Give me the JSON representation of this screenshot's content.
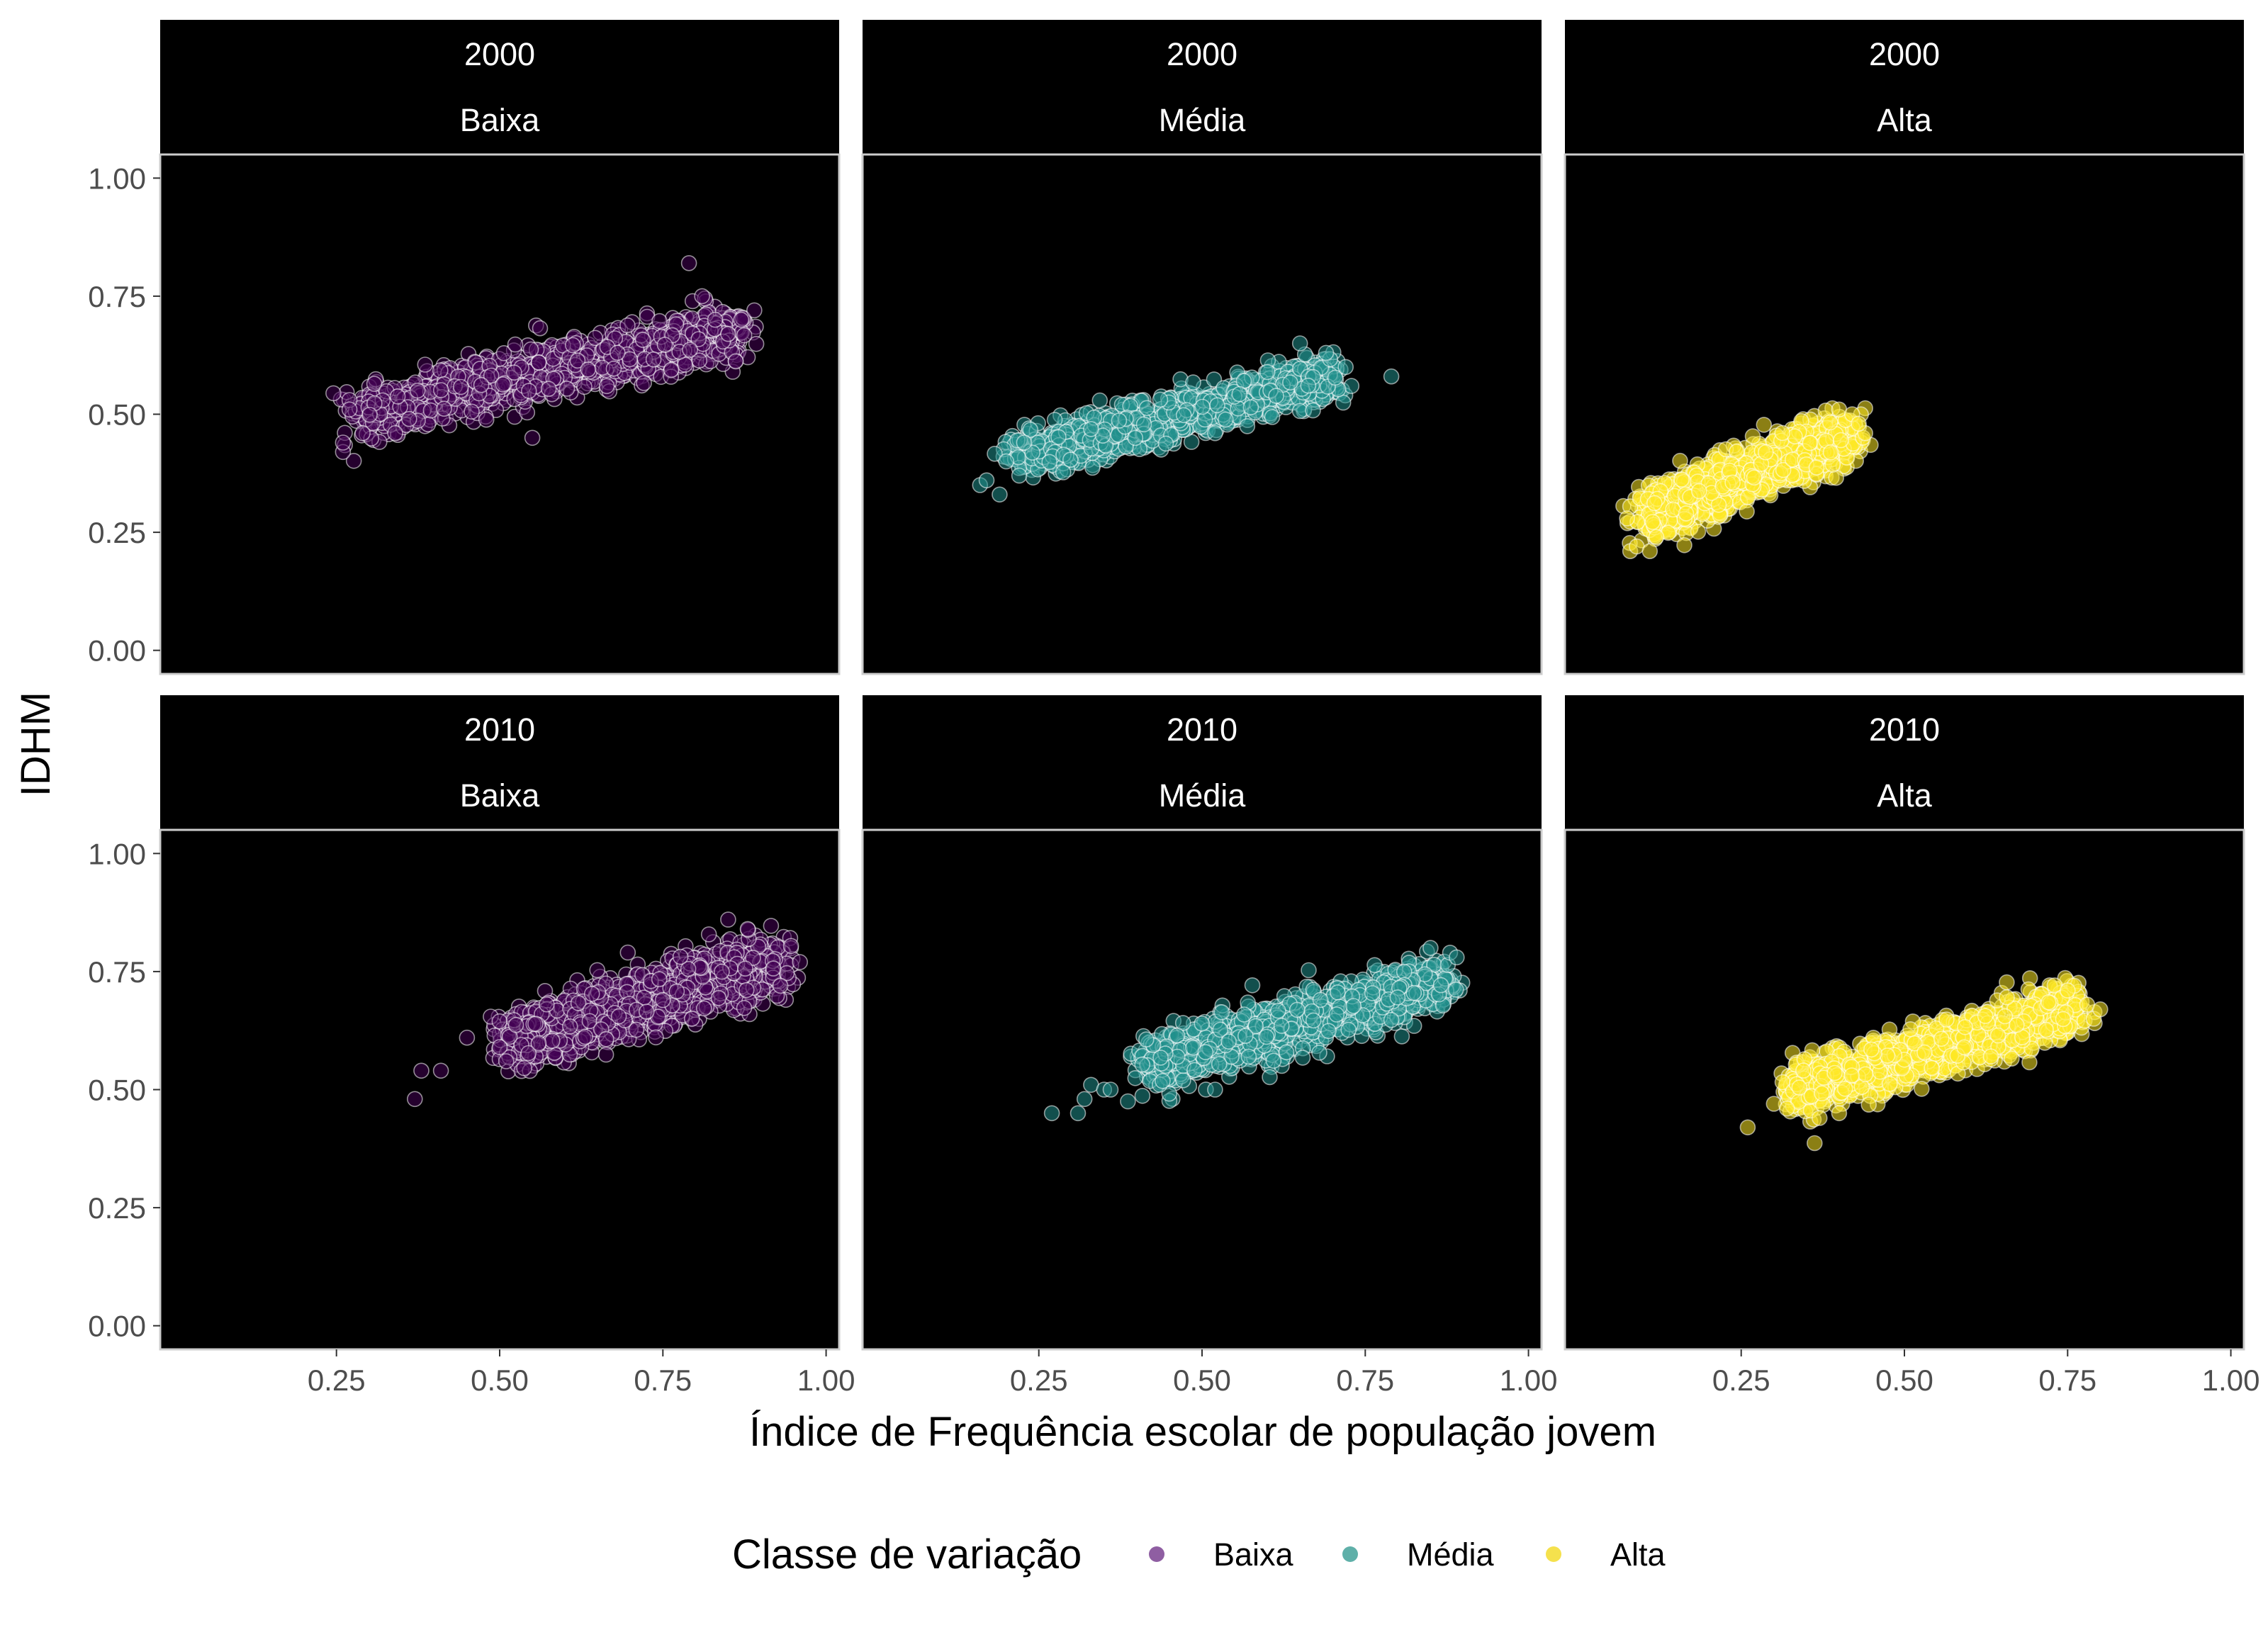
{
  "chart_data": {
    "type": "scatter",
    "facet_rows": [
      "2000",
      "2010"
    ],
    "facet_cols": [
      "Baixa",
      "Média",
      "Alta"
    ],
    "xlabel": "Índice de Frequência escolar de população jovem",
    "ylabel": "IDHM",
    "xlim": [
      0.0,
      1.0
    ],
    "ylim": [
      0.0,
      1.0
    ],
    "xticks": [
      "0.25",
      "0.50",
      "0.75",
      "1.00"
    ],
    "yticks": [
      "0.00",
      "0.25",
      "0.50",
      "0.75",
      "1.00"
    ],
    "background": "#000000",
    "grid": false,
    "legend": {
      "title": "Classe de variação",
      "position": "bottom",
      "items": [
        {
          "label": "Baixa",
          "color": "#8f5ea2"
        },
        {
          "label": "Média",
          "color": "#5fb0a9"
        },
        {
          "label": "Alta",
          "color": "#f5e14d"
        }
      ]
    },
    "panels": [
      {
        "year": "2000",
        "class": "Baixa",
        "color": "#440154",
        "cloud": {
          "x_range": [
            0.28,
            0.87
          ],
          "y_at_xmin": 0.5,
          "y_at_xmax": 0.68,
          "spread": 0.06
        },
        "outliers": [
          [
            0.26,
            0.42
          ],
          [
            0.26,
            0.44
          ],
          [
            0.27,
            0.53
          ],
          [
            0.27,
            0.51
          ],
          [
            0.29,
            0.46
          ],
          [
            0.34,
            0.46
          ],
          [
            0.79,
            0.82
          ],
          [
            0.81,
            0.75
          ],
          [
            0.83,
            0.7
          ],
          [
            0.85,
            0.67
          ],
          [
            0.87,
            0.7
          ],
          [
            0.89,
            0.72
          ],
          [
            0.55,
            0.45
          ]
        ]
      },
      {
        "year": "2000",
        "class": "Média",
        "color": "#21908c",
        "cloud": {
          "x_range": [
            0.22,
            0.7
          ],
          "y_at_xmin": 0.41,
          "y_at_xmax": 0.58,
          "spread": 0.05
        },
        "outliers": [
          [
            0.16,
            0.35
          ],
          [
            0.17,
            0.36
          ],
          [
            0.19,
            0.33
          ],
          [
            0.2,
            0.4
          ],
          [
            0.22,
            0.37
          ],
          [
            0.65,
            0.65
          ],
          [
            0.69,
            0.63
          ],
          [
            0.72,
            0.6
          ],
          [
            0.79,
            0.58
          ],
          [
            0.52,
            0.46
          ]
        ]
      },
      {
        "year": "2000",
        "class": "Alta",
        "color": "#fde725",
        "cloud": {
          "x_range": [
            0.1,
            0.42
          ],
          "y_at_xmin": 0.28,
          "y_at_xmax": 0.46,
          "spread": 0.06
        },
        "outliers": [
          [
            0.08,
            0.21
          ],
          [
            0.09,
            0.22
          ],
          [
            0.11,
            0.21
          ],
          [
            0.12,
            0.24
          ],
          [
            0.4,
            0.51
          ],
          [
            0.42,
            0.5
          ],
          [
            0.44,
            0.46
          ],
          [
            0.43,
            0.48
          ]
        ]
      },
      {
        "year": "2010",
        "class": "Baixa",
        "color": "#440154",
        "cloud": {
          "x_range": [
            0.51,
            0.93
          ],
          "y_at_xmin": 0.6,
          "y_at_xmax": 0.77,
          "spread": 0.07
        },
        "outliers": [
          [
            0.37,
            0.48
          ],
          [
            0.38,
            0.54
          ],
          [
            0.41,
            0.54
          ],
          [
            0.45,
            0.61
          ],
          [
            0.5,
            0.59
          ],
          [
            0.51,
            0.56
          ],
          [
            0.85,
            0.86
          ],
          [
            0.88,
            0.84
          ],
          [
            0.96,
            0.77
          ],
          [
            0.93,
            0.72
          ]
        ]
      },
      {
        "year": "2010",
        "class": "Média",
        "color": "#21908c",
        "cloud": {
          "x_range": [
            0.42,
            0.87
          ],
          "y_at_xmin": 0.55,
          "y_at_xmax": 0.73,
          "spread": 0.06
        },
        "outliers": [
          [
            0.27,
            0.45
          ],
          [
            0.31,
            0.45
          ],
          [
            0.32,
            0.48
          ],
          [
            0.33,
            0.51
          ],
          [
            0.35,
            0.5
          ],
          [
            0.36,
            0.5
          ],
          [
            0.52,
            0.5
          ],
          [
            0.85,
            0.8
          ],
          [
            0.88,
            0.79
          ],
          [
            0.89,
            0.78
          ]
        ]
      },
      {
        "year": "2010",
        "class": "Alta",
        "color": "#fde725",
        "cloud": {
          "x_range": [
            0.33,
            0.76
          ],
          "y_at_xmin": 0.5,
          "y_at_xmax": 0.67,
          "spread": 0.06
        },
        "outliers": [
          [
            0.26,
            0.42
          ],
          [
            0.3,
            0.47
          ],
          [
            0.32,
            0.46
          ],
          [
            0.37,
            0.44
          ],
          [
            0.4,
            0.45
          ],
          [
            0.78,
            0.68
          ],
          [
            0.79,
            0.65
          ],
          [
            0.8,
            0.67
          ],
          [
            0.76,
            0.72
          ],
          [
            0.75,
            0.71
          ]
        ]
      }
    ]
  }
}
